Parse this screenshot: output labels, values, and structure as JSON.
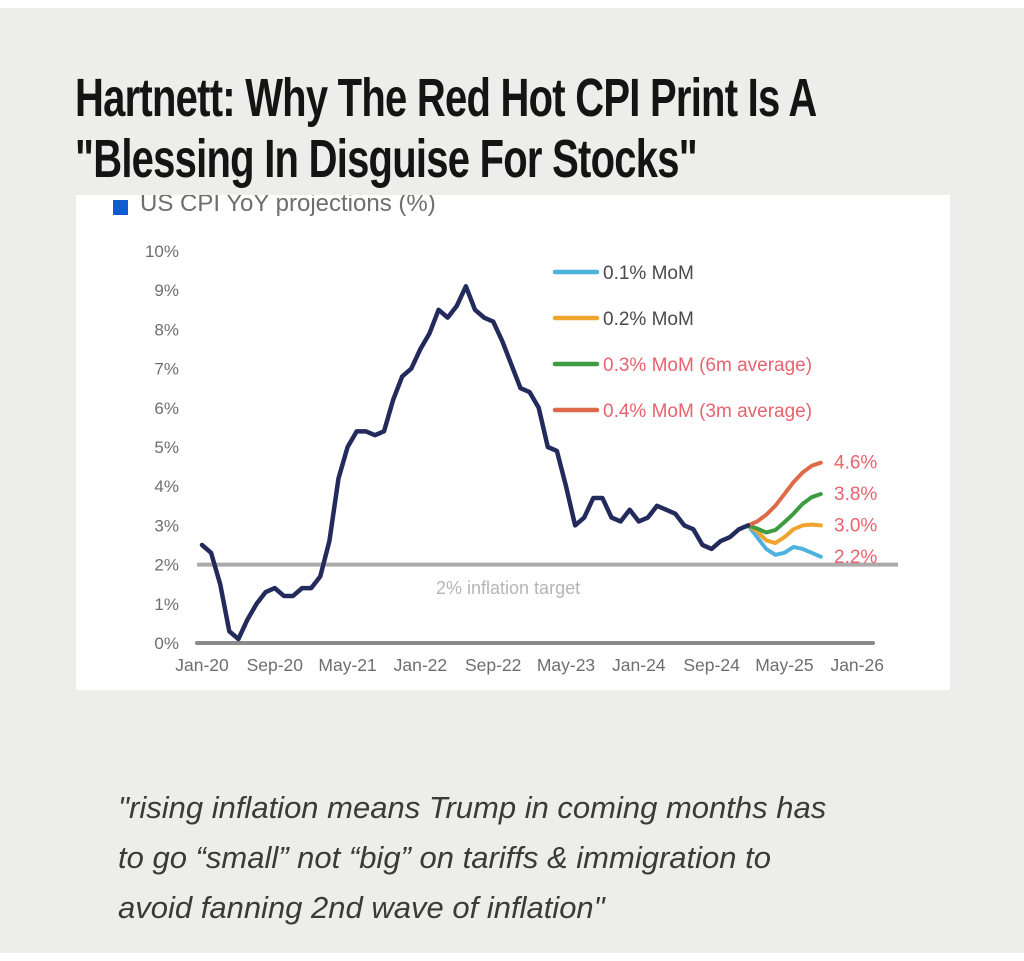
{
  "header": {
    "title_lines": [
      "Hartnett: Why The Red Hot CPI Print Is A",
      "\"Blessing In Disguise For Stocks\""
    ]
  },
  "quote": {
    "lines": [
      "\"rising inflation means Trump in coming months has",
      "to go “small” not “big” on tariffs & immigration to",
      "avoid fanning 2nd wave of inflation\""
    ]
  },
  "chart_data": {
    "type": "line",
    "title": "US CPI YoY projections (%)",
    "title_marker_color": "#0f5bd0",
    "title_text_color": "#6e6e6e",
    "x_unit": "months since Jan-2020",
    "x_tick_months": [
      0,
      8,
      16,
      24,
      32,
      40,
      48,
      56,
      64,
      72
    ],
    "x_tick_labels": [
      "Jan-20",
      "Sep-20",
      "May-21",
      "Jan-22",
      "Sep-22",
      "May-23",
      "Jan-24",
      "Sep-24",
      "May-25",
      "Jan-26"
    ],
    "y_tick_labels": [
      "0%",
      "1%",
      "2%",
      "3%",
      "4%",
      "5%",
      "6%",
      "7%",
      "8%",
      "9%",
      "10%"
    ],
    "ylim": [
      0,
      10
    ],
    "grid": false,
    "legend_position": "upper right",
    "axis_color": "#8a8a8a",
    "tick_text_color": "#6e6e6e",
    "end_label_color": "#e8636e",
    "series": [
      {
        "name": "US CPI YoY actual",
        "color": "#232a5c",
        "start_month": 0,
        "values": [
          2.5,
          2.3,
          1.5,
          0.3,
          0.1,
          0.6,
          1.0,
          1.3,
          1.4,
          1.2,
          1.2,
          1.4,
          1.4,
          1.7,
          2.6,
          4.2,
          5.0,
          5.4,
          5.4,
          5.3,
          5.4,
          6.2,
          6.8,
          7.0,
          7.5,
          7.9,
          8.5,
          8.3,
          8.6,
          9.1,
          8.5,
          8.3,
          8.2,
          7.7,
          7.1,
          6.5,
          6.4,
          6.0,
          5.0,
          4.9,
          4.0,
          3.0,
          3.2,
          3.7,
          3.7,
          3.2,
          3.1,
          3.4,
          3.1,
          3.2,
          3.5,
          3.4,
          3.3,
          3.0,
          2.9,
          2.5,
          2.4,
          2.6,
          2.7,
          2.9,
          3.0
        ]
      }
    ],
    "projections": [
      {
        "name": "0.1% MoM",
        "color": "#4db3de",
        "legend_text_color": "#4a4a4a",
        "start_month": 60,
        "values": [
          3.0,
          2.7,
          2.4,
          2.25,
          2.3,
          2.45,
          2.4,
          2.3,
          2.2
        ],
        "end_label": "2.2%"
      },
      {
        "name": "0.2% MoM",
        "color": "#efa42f",
        "legend_text_color": "#4a4a4a",
        "start_month": 60,
        "values": [
          3.0,
          2.85,
          2.62,
          2.55,
          2.7,
          2.9,
          3.0,
          3.02,
          3.0
        ],
        "end_label": "3.0%"
      },
      {
        "name": "0.3% MoM (6m average)",
        "color": "#3d9c41",
        "legend_text_color": "#e8636e",
        "start_month": 60,
        "values": [
          3.0,
          2.92,
          2.82,
          2.88,
          3.08,
          3.3,
          3.55,
          3.72,
          3.8
        ],
        "end_label": "3.8%"
      },
      {
        "name": "0.4% MoM (3m average)",
        "color": "#dd6b4a",
        "legend_text_color": "#e8636e",
        "start_month": 60,
        "values": [
          3.0,
          3.1,
          3.27,
          3.5,
          3.8,
          4.1,
          4.35,
          4.52,
          4.6
        ],
        "end_label": "4.6%"
      }
    ],
    "target_line": {
      "value": 2,
      "label": "2% inflation target",
      "color": "#ababab",
      "label_color": "#b5b5b5"
    }
  }
}
